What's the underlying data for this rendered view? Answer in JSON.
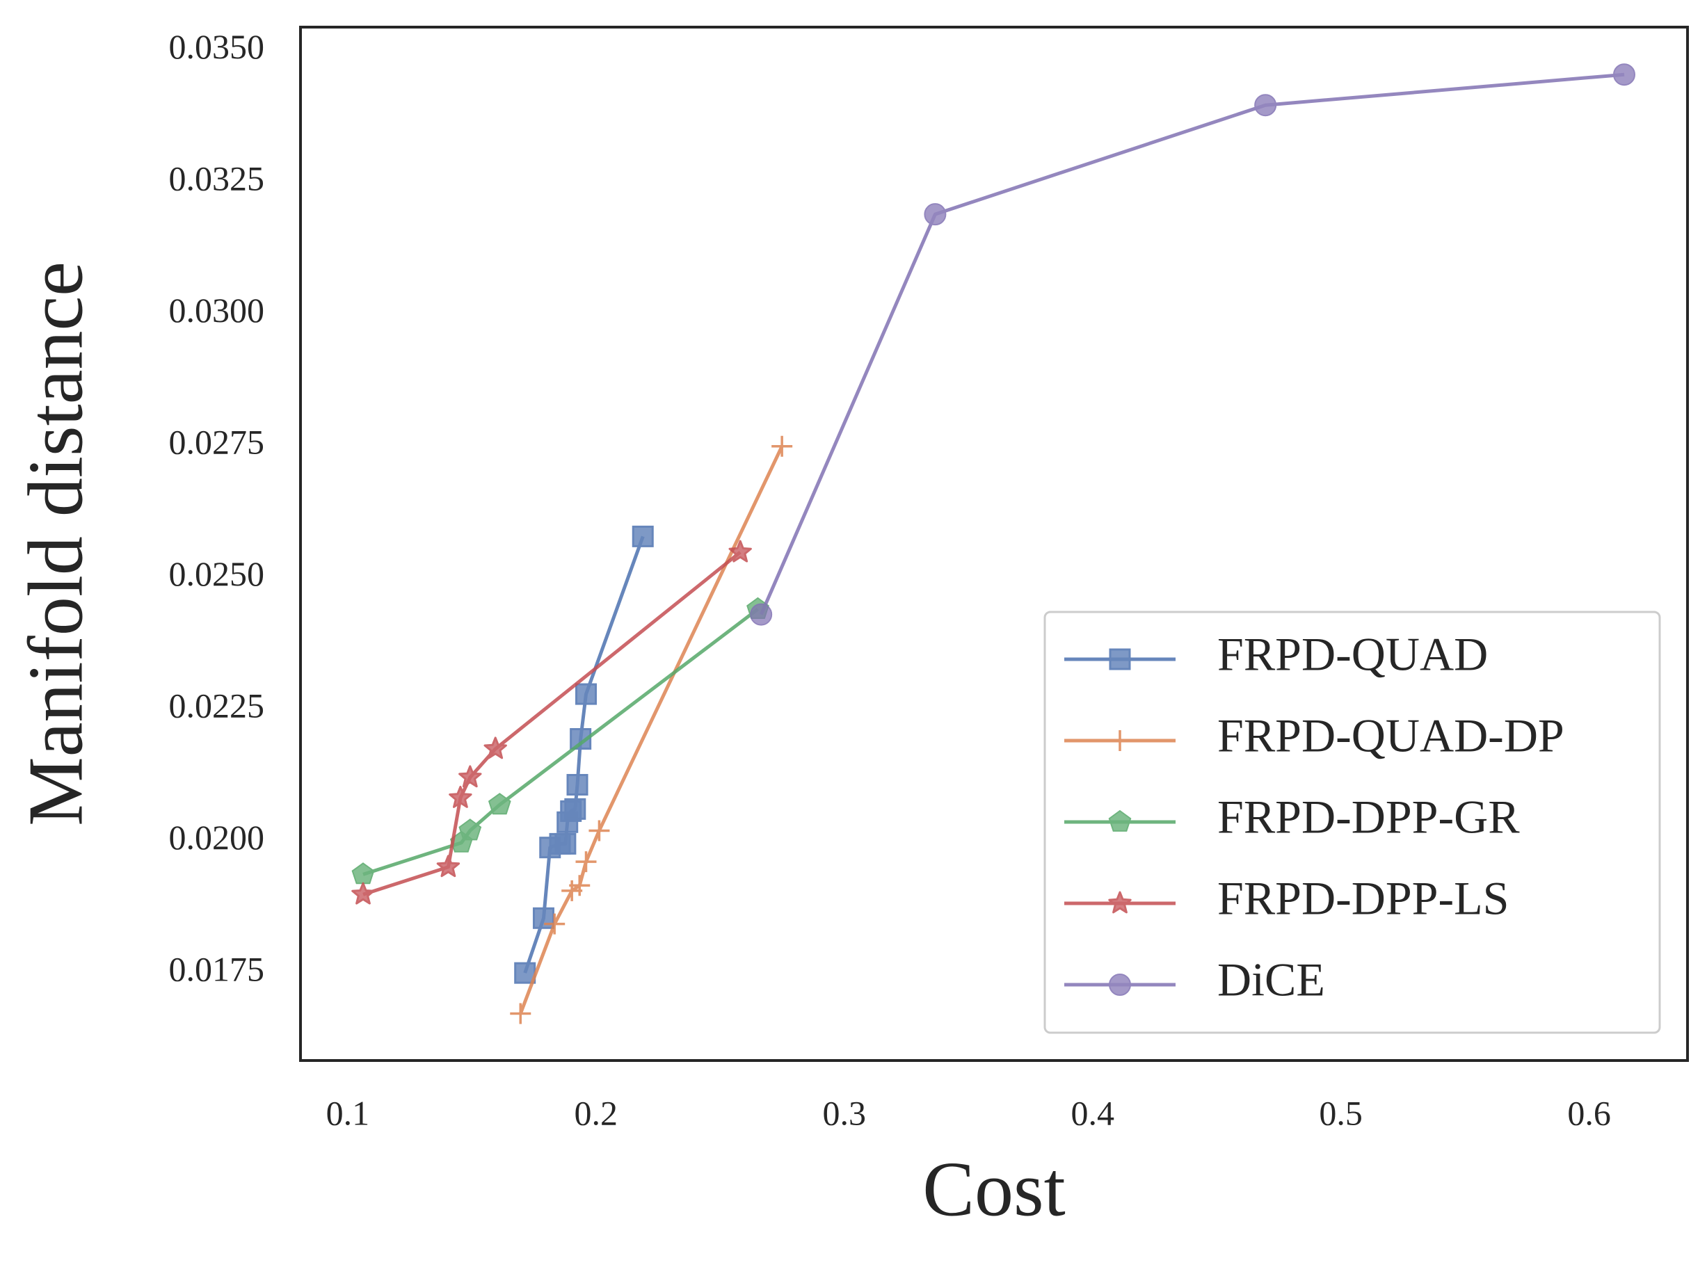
{
  "chart_data": {
    "type": "line",
    "x_label": "Cost",
    "y_label": "Manifold distance",
    "xlim": [
      0.081,
      0.6396
    ],
    "ylim": [
      0.01584,
      0.03544
    ],
    "xticks": [
      0.1,
      0.2,
      0.3,
      0.4,
      0.5,
      0.6
    ],
    "yticks": [
      {
        "value": 0.0175,
        "label": "0.0175"
      },
      {
        "value": 0.02,
        "label": "0.0200"
      },
      {
        "value": 0.0225,
        "label": "0.0225"
      },
      {
        "value": 0.025,
        "label": "0.0250"
      },
      {
        "value": 0.0275,
        "label": "0.0275"
      },
      {
        "value": 0.03,
        "label": "0.0300"
      },
      {
        "value": 0.0325,
        "label": "0.0325"
      },
      {
        "value": 0.035,
        "label": "0.0350"
      }
    ],
    "grid": false,
    "legend": "lower right",
    "series": [
      {
        "name": "FRPD-QUAD",
        "color": "#4c72b0",
        "marker": "square",
        "x": [
          0.1714,
          0.1789,
          0.1815,
          0.1855,
          0.1877,
          0.1885,
          0.1899,
          0.1916,
          0.1925,
          0.1938,
          0.196,
          0.2189
        ],
        "values": [
          0.0175,
          0.01854,
          0.01988,
          0.01995,
          0.01995,
          0.02036,
          0.02057,
          0.02061,
          0.02107,
          0.02194,
          0.02279,
          0.02578
        ]
      },
      {
        "name": "FRPD-QUAD-DP",
        "color": "#dd8452",
        "marker": "plus",
        "x": [
          0.1696,
          0.1833,
          0.1903,
          0.1934,
          0.196,
          0.2013,
          0.2749
        ],
        "values": [
          0.01673,
          0.01843,
          0.01906,
          0.01916,
          0.01961,
          0.0202,
          0.02749
        ]
      },
      {
        "name": "FRPD-DPP-GR",
        "color": "#55a868",
        "marker": "pentagon",
        "x": [
          0.1062,
          0.1458,
          0.1493,
          0.1612,
          0.2652
        ],
        "values": [
          0.01937,
          0.01997,
          0.0202,
          0.02069,
          0.0244
        ]
      },
      {
        "name": "FRPD-DPP-LS",
        "color": "#c44e52",
        "marker": "star",
        "x": [
          0.1062,
          0.1405,
          0.1454,
          0.1493,
          0.1595,
          0.2581
        ],
        "values": [
          0.01899,
          0.01951,
          0.02082,
          0.02121,
          0.02175,
          0.02548
        ]
      },
      {
        "name": "DiCE",
        "color": "#8172b3",
        "marker": "circle",
        "x": [
          0.2665,
          0.3366,
          0.4696,
          0.6141
        ],
        "values": [
          0.0243,
          0.03189,
          0.03396,
          0.03454
        ]
      }
    ]
  }
}
